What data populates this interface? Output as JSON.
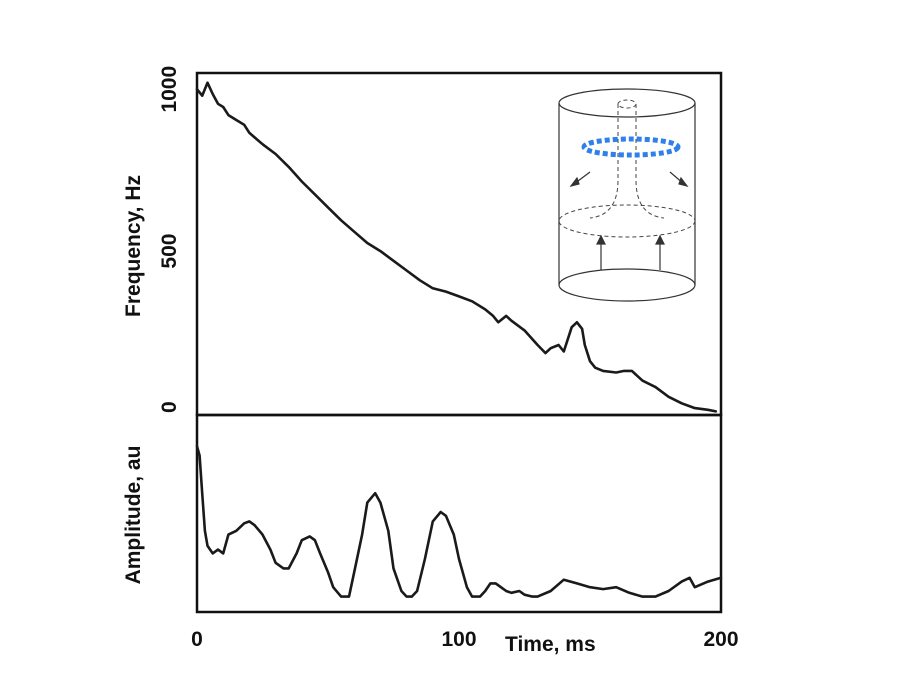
{
  "chart_data": [
    {
      "panel": "top",
      "type": "line",
      "ylabel": "Frequency, Hz",
      "xlim": [
        0,
        200
      ],
      "ylim": [
        0,
        1050
      ],
      "yticks": [
        {
          "value": 0,
          "label": "0"
        },
        {
          "value": 500,
          "label": "500"
        },
        {
          "value": 1000,
          "label": "1000"
        }
      ],
      "series": [
        {
          "name": "frequency",
          "x": [
            0,
            2,
            4,
            6,
            8,
            10,
            12,
            15,
            18,
            20,
            25,
            30,
            35,
            40,
            45,
            50,
            55,
            60,
            65,
            70,
            75,
            80,
            85,
            90,
            95,
            100,
            105,
            110,
            113,
            115,
            118,
            120,
            125,
            130,
            133,
            135,
            138,
            140,
            143,
            145,
            147,
            148,
            150,
            152,
            155,
            160,
            163,
            166,
            168,
            170,
            175,
            180,
            185,
            190,
            195,
            198
          ],
          "y": [
            1000,
            980,
            1020,
            985,
            955,
            945,
            920,
            905,
            890,
            865,
            830,
            800,
            760,
            715,
            675,
            635,
            595,
            560,
            525,
            500,
            470,
            440,
            410,
            385,
            375,
            360,
            345,
            320,
            300,
            280,
            300,
            285,
            255,
            210,
            185,
            200,
            210,
            190,
            265,
            280,
            260,
            210,
            160,
            140,
            130,
            125,
            130,
            130,
            115,
            100,
            80,
            50,
            30,
            15,
            10,
            5
          ]
        }
      ]
    },
    {
      "panel": "bottom",
      "type": "line",
      "ylabel": "Amplitude, au",
      "xlabel": "Time, ms",
      "xlim": [
        0,
        200
      ],
      "ylim": [
        0,
        100
      ],
      "xticks": [
        {
          "value": 0,
          "label": "0"
        },
        {
          "value": 100,
          "label": "100"
        },
        {
          "value": 200,
          "label": "200"
        }
      ],
      "series": [
        {
          "name": "amplitude",
          "x": [
            0,
            1,
            2,
            3,
            4,
            5,
            6,
            8,
            10,
            12,
            15,
            18,
            20,
            22,
            25,
            28,
            30,
            33,
            35,
            38,
            40,
            43,
            45,
            47,
            50,
            52,
            55,
            58,
            60,
            63,
            65,
            68,
            70,
            73,
            75,
            78,
            80,
            82,
            84,
            87,
            90,
            93,
            95,
            98,
            100,
            103,
            105,
            108,
            110,
            112,
            114,
            116,
            118,
            120,
            123,
            125,
            128,
            130,
            135,
            140,
            145,
            150,
            155,
            160,
            165,
            170,
            175,
            180,
            185,
            188,
            190,
            195,
            200
          ],
          "y": [
            85,
            80,
            60,
            40,
            32,
            30,
            28,
            30,
            28,
            38,
            40,
            44,
            45,
            43,
            38,
            30,
            23,
            20,
            20,
            28,
            35,
            37,
            35,
            28,
            18,
            10,
            5,
            5,
            18,
            38,
            55,
            60,
            55,
            40,
            20,
            8,
            5,
            5,
            8,
            25,
            45,
            50,
            48,
            38,
            25,
            10,
            5,
            5,
            8,
            12,
            12,
            10,
            8,
            7,
            8,
            6,
            5,
            5,
            8,
            14,
            12,
            10,
            9,
            10,
            7,
            5,
            5,
            8,
            13,
            15,
            10,
            13,
            15
          ]
        }
      ]
    }
  ]
}
